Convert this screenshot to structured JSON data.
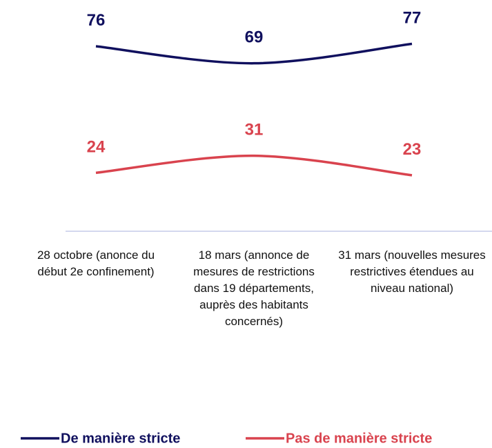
{
  "chart_data": {
    "type": "line",
    "categories": [
      "28 octobre (anonce du début 2e confinement)",
      "18 mars (annonce de mesures de restrictions dans 19 départements, auprès des habitants concernés)",
      "31 mars (nouvelles mesures restrictives étendues au niveau national)"
    ],
    "series": [
      {
        "name": "De manière stricte",
        "color": "#10105e",
        "values": [
          76,
          69,
          77
        ]
      },
      {
        "name": "Pas de manière stricte",
        "color": "#d9434e",
        "values": [
          24,
          31,
          23
        ]
      }
    ],
    "ylim": [
      0,
      95
    ],
    "legend": "bottom"
  }
}
